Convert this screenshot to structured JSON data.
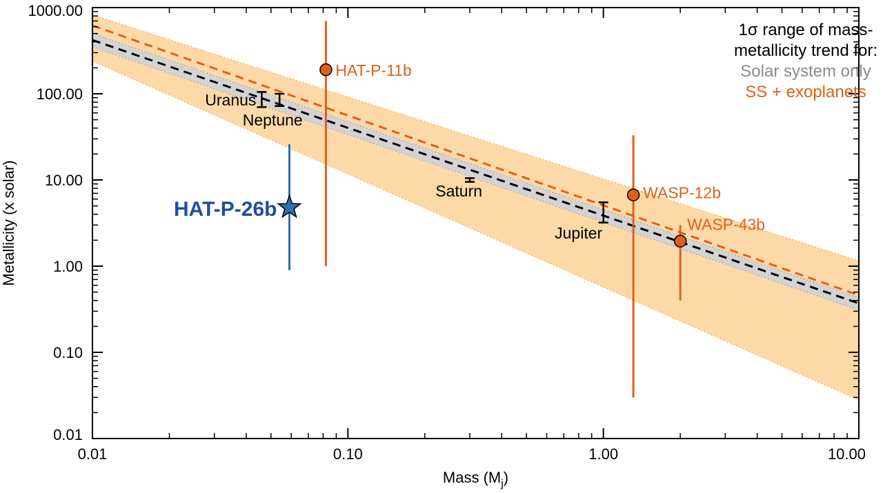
{
  "chart_data": {
    "type": "scatter",
    "title": "",
    "xlabel": "Mass (M",
    "xlabel_sub": "j",
    "xlabel_close": ")",
    "ylabel": "Metallicity (x solar)",
    "xscale": "log",
    "yscale": "log",
    "xlim": [
      0.01,
      10.0
    ],
    "ylim": [
      0.01,
      1000.0
    ],
    "xticks": [
      {
        "value": 0.01,
        "label": "0.01"
      },
      {
        "value": 0.1,
        "label": "0.10"
      },
      {
        "value": 1.0,
        "label": "1.00"
      },
      {
        "value": 10.0,
        "label": "10.00"
      }
    ],
    "yticks": [
      {
        "value": 0.01,
        "label": "0.01"
      },
      {
        "value": 0.1,
        "label": "0.10"
      },
      {
        "value": 1.0,
        "label": "1.00"
      },
      {
        "value": 10.0,
        "label": "10.00"
      },
      {
        "value": 100.0,
        "label": "100.00"
      },
      {
        "value": 1000.0,
        "label": "1000.00"
      }
    ],
    "legend": {
      "position": "top-right",
      "title_lines": [
        "1σ range of mass-",
        "metallicity trend for:"
      ],
      "entries": [
        {
          "label": "Solar system only",
          "color": "#8a8a8a"
        },
        {
          "label": "SS + exoplanets",
          "color": "#e0601a"
        }
      ]
    },
    "trends": [
      {
        "name": "Solar system only",
        "line_color": "#000000",
        "band_color": "#d3d3d3",
        "band_edge_color": "#b0b0b0",
        "center": [
          [
            0.01,
            420
          ],
          [
            10.0,
            0.37
          ]
        ],
        "upper": [
          [
            0.01,
            500
          ],
          [
            10.0,
            0.43
          ]
        ],
        "lower": [
          [
            0.01,
            350
          ],
          [
            10.0,
            0.31
          ]
        ]
      },
      {
        "name": "SS + exoplanets",
        "line_color": "#e0601a",
        "band_color": "#fdd9a8",
        "band_edge_color": "#f5b460",
        "center": [
          [
            0.01,
            620
          ],
          [
            10.0,
            0.46
          ]
        ],
        "upper": [
          [
            0.01,
            820
          ],
          [
            10.0,
            1.15
          ]
        ],
        "lower": [
          [
            0.01,
            240
          ],
          [
            10.0,
            0.028
          ]
        ]
      }
    ],
    "solar_system": [
      {
        "name": "Uranus",
        "mass": 0.046,
        "z": 85,
        "z_lo": 70,
        "z_hi": 105,
        "label_anchor": "end",
        "label_dx": -8,
        "label_dy": 8
      },
      {
        "name": "Neptune",
        "mass": 0.054,
        "z": 85,
        "z_lo": 72,
        "z_hi": 100,
        "label_anchor": "middle",
        "label_dx": -10,
        "label_dy": 37
      },
      {
        "name": "Saturn",
        "mass": 0.3,
        "z": 10,
        "z_lo": 9.5,
        "z_hi": 10.5,
        "label_anchor": "end",
        "label_dx": 18,
        "label_dy": 24
      },
      {
        "name": "Jupiter",
        "mass": 1.0,
        "z": 4.2,
        "z_lo": 3.2,
        "z_hi": 5.5,
        "label_anchor": "middle",
        "label_dx": -36,
        "label_dy": 38
      }
    ],
    "exoplanets": [
      {
        "name": "HAT-P-11b",
        "mass": 0.082,
        "z": 190,
        "z_lo": 1.0,
        "z_hi": 700,
        "color": "#e0601a",
        "label_dx": 14,
        "label_dy": 9
      },
      {
        "name": "WASP-12b",
        "mass": 1.31,
        "z": 6.7,
        "z_lo": 0.03,
        "z_hi": 33,
        "color": "#e0601a",
        "label_dx": 14,
        "label_dy": 5
      },
      {
        "name": "WASP-43b",
        "mass": 2.0,
        "z": 1.95,
        "z_lo": 0.4,
        "z_hi": 3.0,
        "color": "#e0601a",
        "label_dx": 10,
        "label_dy": -16
      }
    ],
    "highlight": {
      "name": "HAT-P-26b",
      "mass": 0.059,
      "z": 4.8,
      "z_lo": 0.9,
      "z_hi": 26,
      "color": "#2f6fae",
      "label_color": "#1f4e9c",
      "label_dx": -18,
      "label_dy": 12
    }
  }
}
